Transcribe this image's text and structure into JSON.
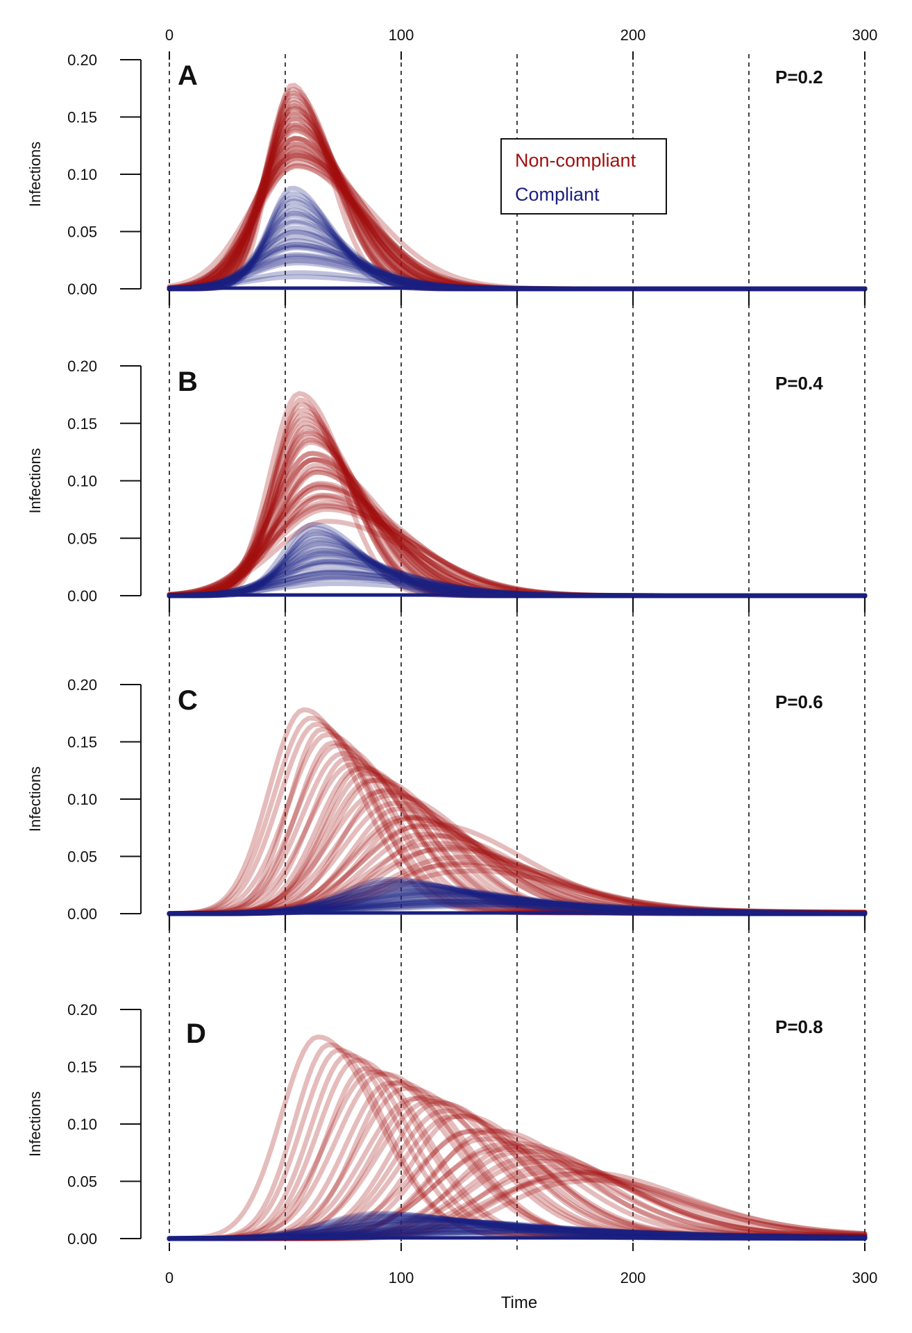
{
  "chart_data": {
    "type": "line",
    "xlabel": "Time",
    "xlim": [
      0,
      300
    ],
    "x_ticks": [
      0,
      100,
      200,
      300
    ],
    "x_ticklabels": [
      "0",
      "100",
      "200",
      "300"
    ],
    "vlines": [
      0,
      50,
      100,
      150,
      200,
      250,
      300
    ],
    "legend": {
      "placement": "top-center (panel A)",
      "entries": [
        {
          "label": "Non-compliant",
          "color": "#a00f0f"
        },
        {
          "label": "Compliant",
          "color": "#1a1f80"
        }
      ]
    },
    "colors": {
      "non_compliant": "#a00f0f",
      "compliant": "#1a1f80"
    },
    "panels": [
      {
        "letter": "A",
        "p_label": "P=0.2",
        "ylabel": "Infections",
        "ylim": [
          0,
          0.2
        ],
        "y_ticklabels": [
          "0.00",
          "0.05",
          "0.10",
          "0.15",
          "0.20"
        ],
        "non_compliant": {
          "peak_time_range": [
            53,
            55
          ],
          "peak_height_range": [
            0.1,
            0.178
          ],
          "width": 13,
          "tail": 0
        },
        "compliant": {
          "peak_time_range": [
            53,
            55
          ],
          "peak_height_range": [
            0.008,
            0.088
          ],
          "width": 13,
          "tail": 0
        }
      },
      {
        "letter": "B",
        "p_label": "P=0.4",
        "ylabel": "Infections",
        "ylim": [
          0,
          0.2
        ],
        "y_ticklabels": [
          "0.00",
          "0.05",
          "0.10",
          "0.15",
          "0.20"
        ],
        "non_compliant": {
          "peak_time_range": [
            56,
            68
          ],
          "peak_height_range": [
            0.06,
            0.176
          ],
          "width": 15,
          "tail": 0
        },
        "compliant": {
          "peak_time_range": [
            62,
            72
          ],
          "peak_height_range": [
            0.008,
            0.062
          ],
          "width": 16,
          "tail": 0
        }
      },
      {
        "letter": "C",
        "p_label": "P=0.6",
        "ylabel": "Infections",
        "ylim": [
          0,
          0.2
        ],
        "y_ticklabels": [
          "0.00",
          "0.05",
          "0.10",
          "0.15",
          "0.20"
        ],
        "non_compliant": {
          "peak_time_range": [
            58,
            125
          ],
          "peak_height_range": [
            0.03,
            0.178
          ],
          "width": 18,
          "tail": 0.003
        },
        "compliant": {
          "peak_time_range": [
            95,
            130
          ],
          "peak_height_range": [
            0.004,
            0.03
          ],
          "width": 28,
          "tail": 0
        }
      },
      {
        "letter": "D",
        "p_label": "P=0.8",
        "ylabel": "Infections",
        "ylim": [
          0,
          0.2
        ],
        "y_ticklabels": [
          "0.00",
          "0.05",
          "0.10",
          "0.15",
          "0.20"
        ],
        "non_compliant": {
          "peak_time_range": [
            64,
            175
          ],
          "peak_height_range": [
            0.035,
            0.176
          ],
          "width": 20,
          "tail": 0.005
        },
        "compliant": {
          "peak_time_range": [
            90,
            140
          ],
          "peak_height_range": [
            0.003,
            0.022
          ],
          "width": 30,
          "tail": 0.002
        }
      }
    ]
  }
}
